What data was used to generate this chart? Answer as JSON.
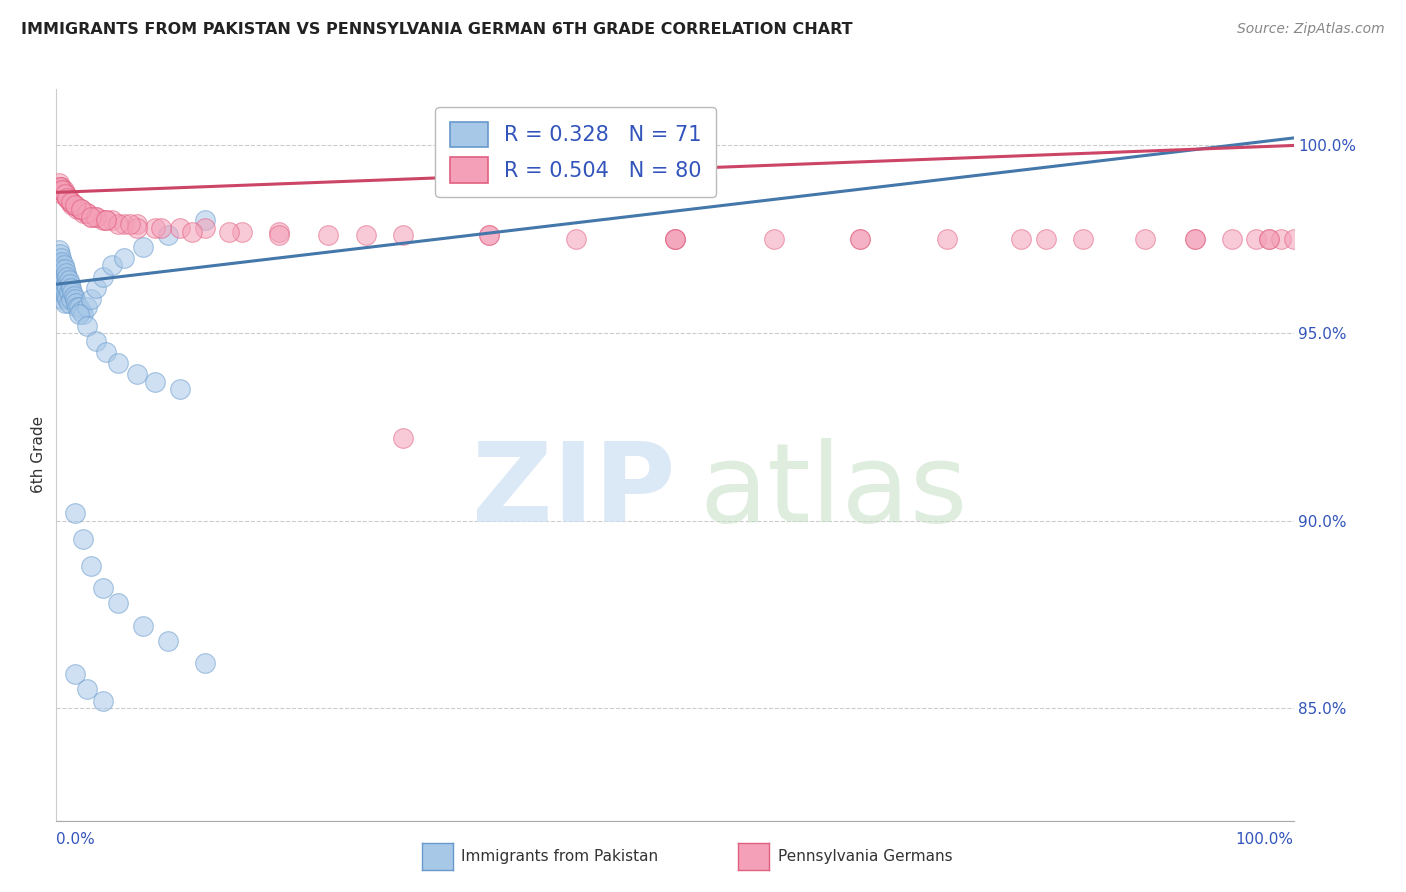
{
  "title": "IMMIGRANTS FROM PAKISTAN VS PENNSYLVANIA GERMAN 6TH GRADE CORRELATION CHART",
  "source": "Source: ZipAtlas.com",
  "ylabel": "6th Grade",
  "xlim": [
    0.0,
    1.0
  ],
  "ylim": [
    0.82,
    1.015
  ],
  "yticks": [
    0.85,
    0.9,
    0.95,
    1.0
  ],
  "ytick_labels": [
    "85.0%",
    "90.0%",
    "95.0%",
    "100.0%"
  ],
  "blue_fill": "#a8c8e8",
  "blue_edge": "#6699cc",
  "blue_line": "#4477aa",
  "pink_fill": "#f4a0b8",
  "pink_edge": "#e06080",
  "pink_line": "#cc4466",
  "legend_blue_label": "R = 0.328   N = 71",
  "legend_pink_label": "R = 0.504   N = 80",
  "legend_label_blue": "Immigrants from Pakistan",
  "legend_label_pink": "Pennsylvania Germans",
  "blue_line_x0": 0.0,
  "blue_line_y0": 0.963,
  "blue_line_x1": 1.0,
  "blue_line_y1": 1.002,
  "pink_line_x0": 0.0,
  "pink_line_y0": 0.9875,
  "pink_line_x1": 1.0,
  "pink_line_y1": 1.0,
  "blue_x": [
    0.002,
    0.002,
    0.003,
    0.003,
    0.003,
    0.003,
    0.003,
    0.004,
    0.004,
    0.004,
    0.004,
    0.005,
    0.005,
    0.005,
    0.005,
    0.005,
    0.006,
    0.006,
    0.006,
    0.007,
    0.007,
    0.007,
    0.007,
    0.008,
    0.008,
    0.008,
    0.009,
    0.009,
    0.009,
    0.01,
    0.01,
    0.01,
    0.011,
    0.012,
    0.012,
    0.013,
    0.014,
    0.015,
    0.016,
    0.017,
    0.018,
    0.02,
    0.022,
    0.025,
    0.028,
    0.032,
    0.038,
    0.045,
    0.055,
    0.07,
    0.09,
    0.12,
    0.018,
    0.025,
    0.032,
    0.04,
    0.05,
    0.065,
    0.08,
    0.1,
    0.015,
    0.022,
    0.028,
    0.038,
    0.05,
    0.07,
    0.09,
    0.12,
    0.015,
    0.025,
    0.038
  ],
  "blue_y": [
    0.972,
    0.969,
    0.971,
    0.968,
    0.966,
    0.964,
    0.961,
    0.97,
    0.967,
    0.964,
    0.962,
    0.969,
    0.967,
    0.965,
    0.962,
    0.959,
    0.968,
    0.965,
    0.962,
    0.967,
    0.964,
    0.961,
    0.958,
    0.966,
    0.963,
    0.96,
    0.965,
    0.962,
    0.959,
    0.964,
    0.961,
    0.958,
    0.963,
    0.962,
    0.959,
    0.961,
    0.96,
    0.959,
    0.958,
    0.957,
    0.957,
    0.956,
    0.955,
    0.957,
    0.959,
    0.962,
    0.965,
    0.968,
    0.97,
    0.973,
    0.976,
    0.98,
    0.955,
    0.952,
    0.948,
    0.945,
    0.942,
    0.939,
    0.937,
    0.935,
    0.902,
    0.895,
    0.888,
    0.882,
    0.878,
    0.872,
    0.868,
    0.862,
    0.859,
    0.855,
    0.852
  ],
  "pink_x": [
    0.002,
    0.003,
    0.004,
    0.005,
    0.006,
    0.007,
    0.008,
    0.009,
    0.01,
    0.011,
    0.012,
    0.013,
    0.015,
    0.017,
    0.019,
    0.022,
    0.025,
    0.028,
    0.032,
    0.038,
    0.045,
    0.055,
    0.065,
    0.08,
    0.1,
    0.12,
    0.15,
    0.18,
    0.22,
    0.28,
    0.35,
    0.42,
    0.5,
    0.58,
    0.65,
    0.72,
    0.78,
    0.83,
    0.88,
    0.92,
    0.95,
    0.97,
    0.98,
    0.99,
    1.0,
    0.003,
    0.005,
    0.007,
    0.009,
    0.012,
    0.015,
    0.02,
    0.025,
    0.032,
    0.04,
    0.05,
    0.065,
    0.085,
    0.11,
    0.14,
    0.18,
    0.25,
    0.35,
    0.5,
    0.65,
    0.8,
    0.92,
    0.98,
    0.003,
    0.005,
    0.007,
    0.009,
    0.012,
    0.015,
    0.02,
    0.028,
    0.04,
    0.06,
    0.28,
    0.5
  ],
  "pink_y": [
    0.99,
    0.989,
    0.989,
    0.988,
    0.988,
    0.987,
    0.987,
    0.986,
    0.986,
    0.985,
    0.985,
    0.984,
    0.984,
    0.983,
    0.983,
    0.982,
    0.982,
    0.981,
    0.981,
    0.98,
    0.98,
    0.979,
    0.979,
    0.978,
    0.978,
    0.978,
    0.977,
    0.977,
    0.976,
    0.976,
    0.976,
    0.975,
    0.975,
    0.975,
    0.975,
    0.975,
    0.975,
    0.975,
    0.975,
    0.975,
    0.975,
    0.975,
    0.975,
    0.975,
    0.975,
    0.988,
    0.987,
    0.987,
    0.986,
    0.985,
    0.984,
    0.983,
    0.982,
    0.981,
    0.98,
    0.979,
    0.978,
    0.978,
    0.977,
    0.977,
    0.976,
    0.976,
    0.976,
    0.975,
    0.975,
    0.975,
    0.975,
    0.975,
    0.989,
    0.988,
    0.987,
    0.986,
    0.985,
    0.984,
    0.983,
    0.981,
    0.98,
    0.979,
    0.922,
    0.975
  ]
}
